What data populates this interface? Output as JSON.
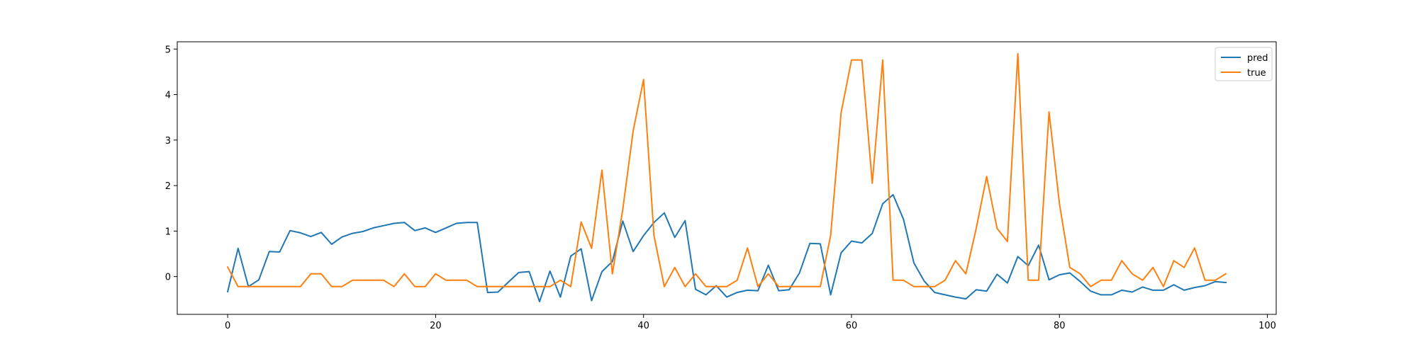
{
  "chart_data": {
    "type": "line",
    "title": "",
    "xlabel": "",
    "ylabel": "",
    "xlim": [
      -4.85,
      100.85
    ],
    "ylim": [
      -0.83,
      5.16
    ],
    "xticks": [
      0,
      20,
      40,
      60,
      80,
      100
    ],
    "yticks": [
      0,
      1,
      2,
      3,
      4,
      5
    ],
    "grid": false,
    "legend_position": "top-right",
    "series": [
      {
        "name": "pred",
        "color": "#1f77b4",
        "values": [
          -0.33,
          0.62,
          -0.22,
          -0.07,
          0.55,
          0.54,
          1.01,
          0.96,
          0.88,
          0.97,
          0.71,
          0.87,
          0.95,
          0.99,
          1.07,
          1.12,
          1.17,
          1.19,
          1.01,
          1.07,
          0.97,
          1.07,
          1.17,
          1.19,
          1.19,
          -0.35,
          -0.34,
          -0.12,
          0.09,
          0.11,
          -0.55,
          0.12,
          -0.45,
          0.45,
          0.61,
          -0.53,
          0.11,
          0.33,
          1.22,
          0.55,
          0.9,
          1.19,
          1.4,
          0.86,
          1.23,
          -0.28,
          -0.4,
          -0.2,
          -0.45,
          -0.35,
          -0.3,
          -0.31,
          0.25,
          -0.31,
          -0.29,
          0.08,
          0.73,
          0.72,
          -0.4,
          0.52,
          0.78,
          0.74,
          0.95,
          1.6,
          1.8,
          1.26,
          0.3,
          -0.1,
          -0.35,
          -0.4,
          -0.45,
          -0.49,
          -0.29,
          -0.32,
          0.05,
          -0.14,
          0.44,
          0.24,
          0.69,
          -0.07,
          0.04,
          0.08,
          -0.11,
          -0.32,
          -0.4,
          -0.4,
          -0.3,
          -0.34,
          -0.23,
          -0.3,
          -0.3,
          -0.18,
          -0.3,
          -0.24,
          -0.2,
          -0.11,
          -0.13
        ]
      },
      {
        "name": "true",
        "color": "#ff7f0e",
        "values": [
          0.21,
          -0.22,
          -0.22,
          -0.22,
          -0.22,
          -0.22,
          -0.22,
          -0.22,
          0.06,
          0.06,
          -0.22,
          -0.22,
          -0.08,
          -0.08,
          -0.08,
          -0.08,
          -0.22,
          0.06,
          -0.22,
          -0.22,
          0.06,
          -0.08,
          -0.08,
          -0.08,
          -0.22,
          -0.22,
          -0.22,
          -0.22,
          -0.22,
          -0.22,
          -0.22,
          -0.22,
          -0.08,
          -0.22,
          1.2,
          0.62,
          2.34,
          0.06,
          1.48,
          3.2,
          4.33,
          0.9,
          -0.22,
          0.2,
          -0.22,
          0.06,
          -0.22,
          -0.22,
          -0.22,
          -0.08,
          0.63,
          -0.22,
          0.06,
          -0.22,
          -0.22,
          -0.22,
          -0.22,
          -0.22,
          0.91,
          3.6,
          4.76,
          4.76,
          2.05,
          4.76,
          -0.08,
          -0.08,
          -0.22,
          -0.22,
          -0.22,
          -0.08,
          0.35,
          0.06,
          1.06,
          2.2,
          1.06,
          0.77,
          4.9,
          -0.08,
          -0.08,
          3.62,
          1.6,
          0.2,
          0.06,
          -0.22,
          -0.08,
          -0.08,
          0.35,
          0.06,
          -0.08,
          0.2,
          -0.22,
          0.35,
          0.2,
          0.63,
          -0.08,
          -0.08,
          0.06
        ]
      }
    ]
  }
}
